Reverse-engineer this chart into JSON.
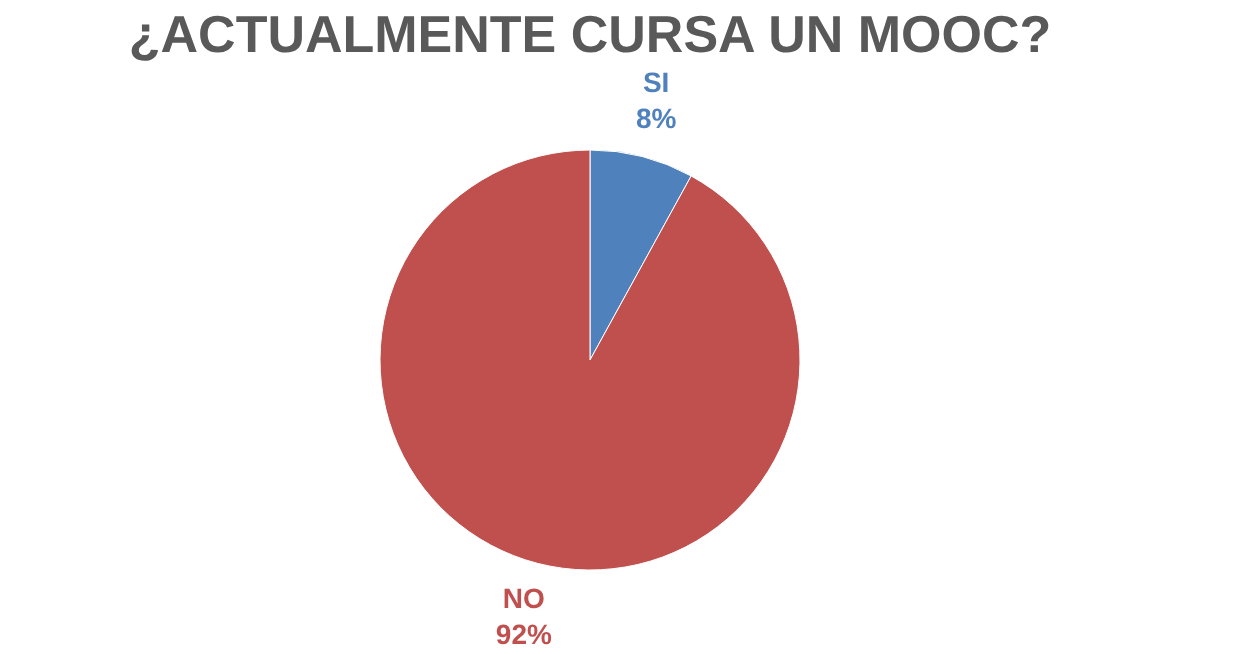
{
  "chart_data": {
    "type": "pie",
    "title": "¿ACTUALMENTE CURSA UN MOOC?",
    "categories": [
      "SI",
      "NO"
    ],
    "values": [
      8,
      92
    ],
    "colors": [
      "#4f81bd",
      "#c0504d"
    ],
    "value_labels": [
      "8%",
      "92%"
    ]
  }
}
